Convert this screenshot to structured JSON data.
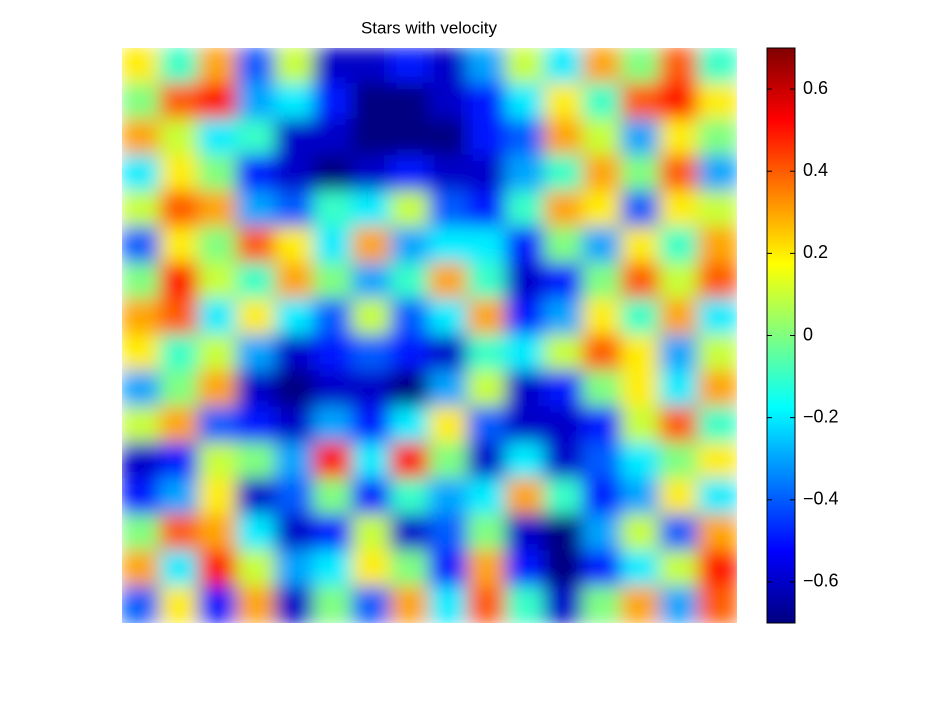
{
  "chart_data": {
    "type": "heatmap",
    "title": "Stars with velocity",
    "colormap": "jet",
    "clim": [
      -0.7,
      0.7
    ],
    "cticks": [
      {
        "value": -0.6,
        "label": "−0.6"
      },
      {
        "value": -0.4,
        "label": "−0.4"
      },
      {
        "value": -0.2,
        "label": "−0.2"
      },
      0,
      0.2,
      0.4,
      0.6
    ],
    "values": [
      [
        0.2,
        -0.1,
        0.3,
        -0.4,
        0.1,
        -0.6,
        -0.6,
        -0.5,
        -0.6,
        -0.3,
        0.1,
        -0.2,
        0.3,
        0.0,
        0.4,
        -0.1
      ],
      [
        0.0,
        0.4,
        0.5,
        -0.3,
        -0.2,
        -0.5,
        -0.7,
        -0.7,
        -0.6,
        -0.5,
        -0.2,
        0.2,
        -0.1,
        0.4,
        0.5,
        0.2
      ],
      [
        0.3,
        0.1,
        -0.2,
        -0.1,
        -0.6,
        -0.6,
        -0.7,
        -0.7,
        -0.7,
        -0.5,
        -0.4,
        0.3,
        0.1,
        -0.3,
        0.2,
        0.0
      ],
      [
        -0.2,
        0.2,
        0.0,
        -0.5,
        -0.6,
        -0.7,
        -0.6,
        -0.5,
        -0.6,
        -0.6,
        -0.3,
        -0.1,
        0.3,
        0.0,
        0.4,
        -0.3
      ],
      [
        0.1,
        0.4,
        0.3,
        -0.3,
        -0.4,
        -0.1,
        -0.2,
        0.1,
        -0.4,
        -0.5,
        -0.1,
        0.3,
        0.2,
        -0.4,
        0.2,
        0.1
      ],
      [
        -0.4,
        0.2,
        0.0,
        0.4,
        0.2,
        -0.2,
        0.3,
        -0.3,
        -0.2,
        -0.2,
        -0.5,
        0.0,
        -0.3,
        0.2,
        -0.1,
        0.3
      ],
      [
        0.0,
        0.5,
        0.1,
        -0.1,
        0.3,
        0.0,
        -0.3,
        -0.1,
        0.3,
        -0.1,
        -0.6,
        -0.5,
        0.0,
        0.4,
        0.1,
        0.4
      ],
      [
        0.3,
        0.4,
        -0.2,
        0.2,
        -0.2,
        -0.4,
        0.1,
        -0.4,
        -0.2,
        0.3,
        -0.5,
        -0.3,
        0.2,
        -0.1,
        0.3,
        -0.2
      ],
      [
        0.2,
        -0.1,
        0.1,
        -0.3,
        -0.6,
        -0.5,
        -0.4,
        -0.5,
        -0.6,
        -0.1,
        -0.2,
        0.1,
        0.4,
        0.2,
        -0.3,
        0.1
      ],
      [
        -0.3,
        0.0,
        0.3,
        -0.6,
        -0.7,
        -0.6,
        -0.6,
        -0.7,
        -0.3,
        0.1,
        -0.6,
        -0.5,
        0.0,
        0.2,
        -0.2,
        0.3
      ],
      [
        0.1,
        0.3,
        -0.4,
        -0.5,
        -0.6,
        -0.3,
        -0.5,
        -0.2,
        0.2,
        -0.4,
        -0.6,
        -0.6,
        -0.5,
        0.1,
        0.4,
        -0.1
      ],
      [
        -0.6,
        -0.5,
        0.1,
        0.0,
        -0.3,
        0.5,
        -0.2,
        0.5,
        0.0,
        -0.6,
        -0.2,
        -0.6,
        -0.4,
        -0.2,
        0.0,
        0.2
      ],
      [
        -0.5,
        -0.3,
        0.2,
        -0.6,
        -0.4,
        0.0,
        -0.5,
        -0.1,
        -0.3,
        -0.2,
        0.3,
        -0.1,
        -0.5,
        -0.3,
        0.2,
        -0.2
      ],
      [
        0.0,
        0.4,
        0.3,
        -0.2,
        -0.6,
        -0.5,
        0.1,
        -0.6,
        -0.4,
        0.0,
        -0.6,
        -0.7,
        -0.3,
        0.1,
        -0.4,
        0.3
      ],
      [
        0.3,
        -0.2,
        0.5,
        0.1,
        -0.3,
        -0.2,
        0.2,
        0.0,
        -0.5,
        0.3,
        -0.5,
        -0.7,
        -0.5,
        -0.2,
        0.1,
        0.5
      ],
      [
        -0.4,
        0.2,
        -0.5,
        0.3,
        -0.6,
        0.0,
        -0.4,
        0.3,
        -0.2,
        0.4,
        -0.1,
        -0.6,
        0.0,
        0.3,
        -0.3,
        0.4
      ]
    ]
  }
}
